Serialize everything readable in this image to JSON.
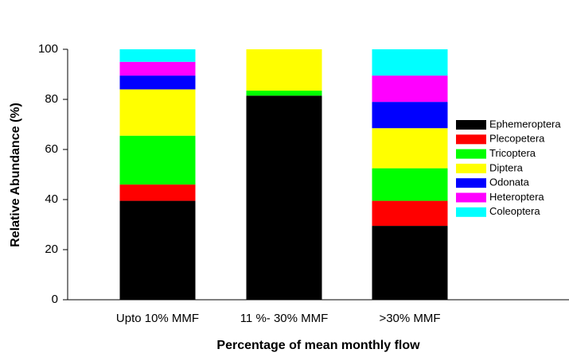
{
  "chart_data": {
    "type": "stacked_bar",
    "x_label": "Percentage of mean monthly flow",
    "y_label": "Relative Abundance (%)",
    "categories": [
      "Upto 10% MMF",
      "11 %- 30% MMF",
      ">30% MMF"
    ],
    "series": [
      {
        "name": "Ephemeroptera",
        "color": "#000000",
        "values": [
          39.5,
          81.5,
          29.5
        ]
      },
      {
        "name": "Plecopetera",
        "color": "#ff0000",
        "values": [
          6.5,
          0,
          10
        ]
      },
      {
        "name": "Tricoptera",
        "color": "#00ff00",
        "values": [
          19.5,
          2,
          13
        ]
      },
      {
        "name": "Diptera",
        "color": "#ffff00",
        "values": [
          18.5,
          16.5,
          16
        ]
      },
      {
        "name": "Odonata",
        "color": "#0000ff",
        "values": [
          5.5,
          0,
          10.5
        ]
      },
      {
        "name": "Heteroptera",
        "color": "#ff00ff",
        "values": [
          5.5,
          0,
          10.5
        ]
      },
      {
        "name": "Coleoptera",
        "color": "#00ffff",
        "values": [
          5,
          0,
          10.5
        ]
      }
    ],
    "ylim": [
      0,
      100
    ],
    "yticks": [
      0,
      20,
      40,
      60,
      80,
      100
    ]
  }
}
